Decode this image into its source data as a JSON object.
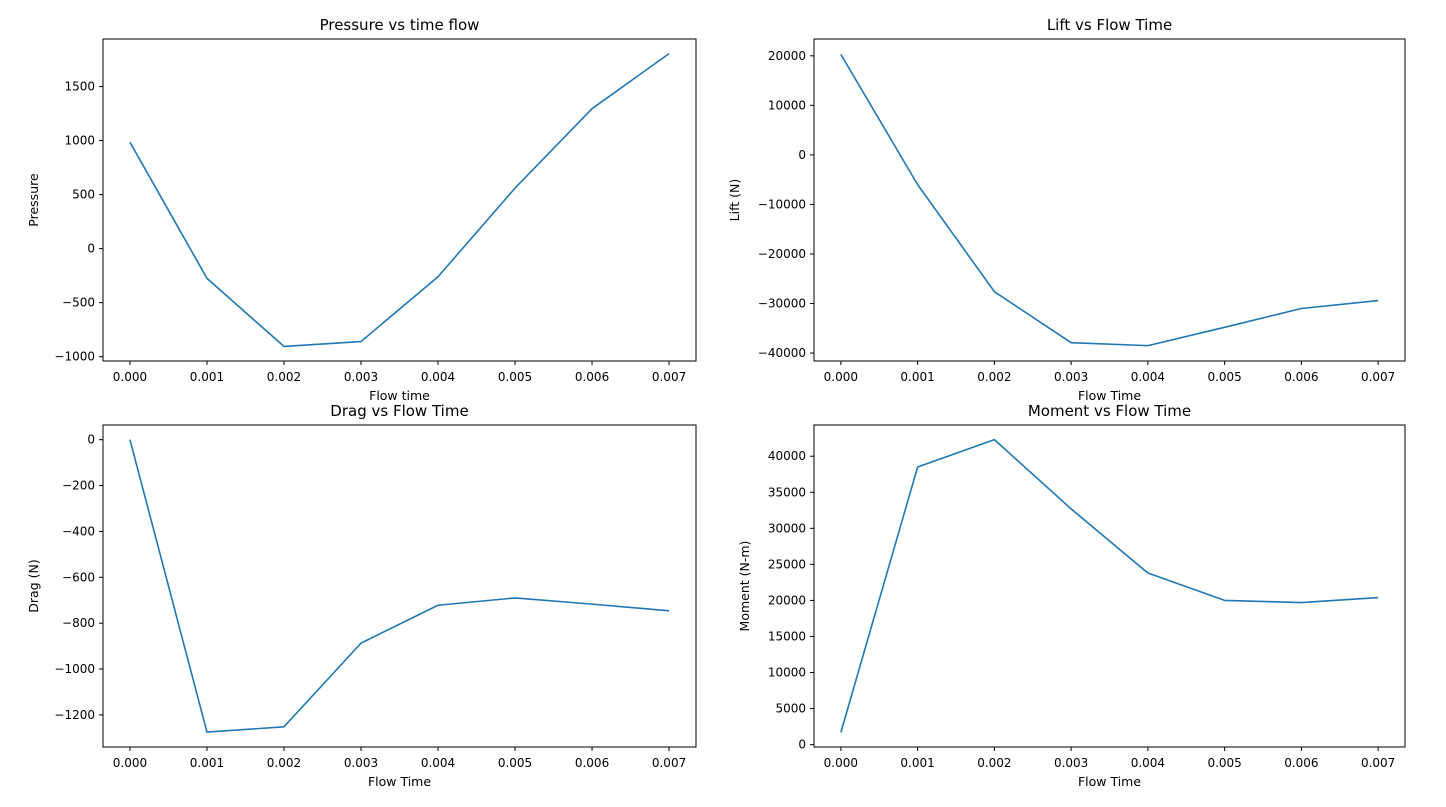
{
  "chart_data": [
    {
      "type": "line",
      "title": "Pressure vs time flow",
      "xlabel": "Flow time",
      "ylabel": "Pressure",
      "x": [
        0.0,
        0.001,
        0.002,
        0.003,
        0.004,
        0.005,
        0.006,
        0.007
      ],
      "series": [
        {
          "values": [
            985,
            -275,
            -905,
            -860,
            -260,
            560,
            1295,
            1805
          ]
        }
      ],
      "xlim": [
        -0.00035,
        0.00735
      ],
      "ylim": [
        -1040,
        1940
      ],
      "xticks": [
        "0.000",
        "0.001",
        "0.002",
        "0.003",
        "0.004",
        "0.005",
        "0.006",
        "0.007"
      ],
      "yticks": [
        "−1000",
        "−500",
        "0",
        "500",
        "1000",
        "1500"
      ],
      "ytick_values": [
        -1000,
        -500,
        0,
        500,
        1000,
        1500
      ],
      "grid": false,
      "color": "#1f77b4"
    },
    {
      "type": "line",
      "title": "Lift vs Flow Time",
      "xlabel": "Flow Time",
      "ylabel": "Lift (N)",
      "x": [
        0.0,
        0.001,
        0.002,
        0.003,
        0.004,
        0.005,
        0.006,
        0.007
      ],
      "series": [
        {
          "values": [
            20300,
            -6000,
            -27600,
            -37900,
            -38500,
            -34800,
            -31000,
            -29400
          ]
        }
      ],
      "xlim": [
        -0.00035,
        0.00735
      ],
      "ylim": [
        -41600,
        23400
      ],
      "xticks": [
        "0.000",
        "0.001",
        "0.002",
        "0.003",
        "0.004",
        "0.005",
        "0.006",
        "0.007"
      ],
      "yticks": [
        "−40000",
        "−30000",
        "−20000",
        "−10000",
        "0",
        "10000",
        "20000"
      ],
      "ytick_values": [
        -40000,
        -30000,
        -20000,
        -10000,
        0,
        10000,
        20000
      ],
      "grid": false,
      "color": "#1f77b4"
    },
    {
      "type": "line",
      "title": "Drag vs Flow Time",
      "xlabel": "Flow Time",
      "ylabel": "Drag (N)",
      "x": [
        0.0,
        0.001,
        0.002,
        0.003,
        0.004,
        0.005,
        0.006,
        0.007
      ],
      "series": [
        {
          "values": [
            0,
            -1275,
            -1252,
            -887,
            -722,
            -690,
            -717,
            -746
          ]
        }
      ],
      "xlim": [
        -0.00035,
        0.00735
      ],
      "ylim": [
        -1340,
        64
      ],
      "xticks": [
        "0.000",
        "0.001",
        "0.002",
        "0.003",
        "0.004",
        "0.005",
        "0.006",
        "0.007"
      ],
      "yticks": [
        "−1200",
        "−1000",
        "−800",
        "−600",
        "−400",
        "−200",
        "0"
      ],
      "ytick_values": [
        -1200,
        -1000,
        -800,
        -600,
        -400,
        -200,
        0
      ],
      "grid": false,
      "color": "#1f77b4"
    },
    {
      "type": "line",
      "title": "Moment vs Flow Time",
      "xlabel": "Flow Time",
      "ylabel": "Moment (N-m)",
      "x": [
        0.0,
        0.001,
        0.002,
        0.003,
        0.004,
        0.005,
        0.006,
        0.007
      ],
      "series": [
        {
          "values": [
            1700,
            38500,
            42300,
            32700,
            23800,
            20000,
            19700,
            20400
          ]
        }
      ],
      "xlim": [
        -0.00035,
        0.00735
      ],
      "ylim": [
        -330,
        44330
      ],
      "xticks": [
        "0.000",
        "0.001",
        "0.002",
        "0.003",
        "0.004",
        "0.005",
        "0.006",
        "0.007"
      ],
      "yticks": [
        "0",
        "5000",
        "10000",
        "15000",
        "20000",
        "25000",
        "30000",
        "35000",
        "40000"
      ],
      "ytick_values": [
        0,
        5000,
        10000,
        15000,
        20000,
        25000,
        30000,
        35000,
        40000
      ],
      "grid": false,
      "color": "#1f77b4"
    }
  ]
}
